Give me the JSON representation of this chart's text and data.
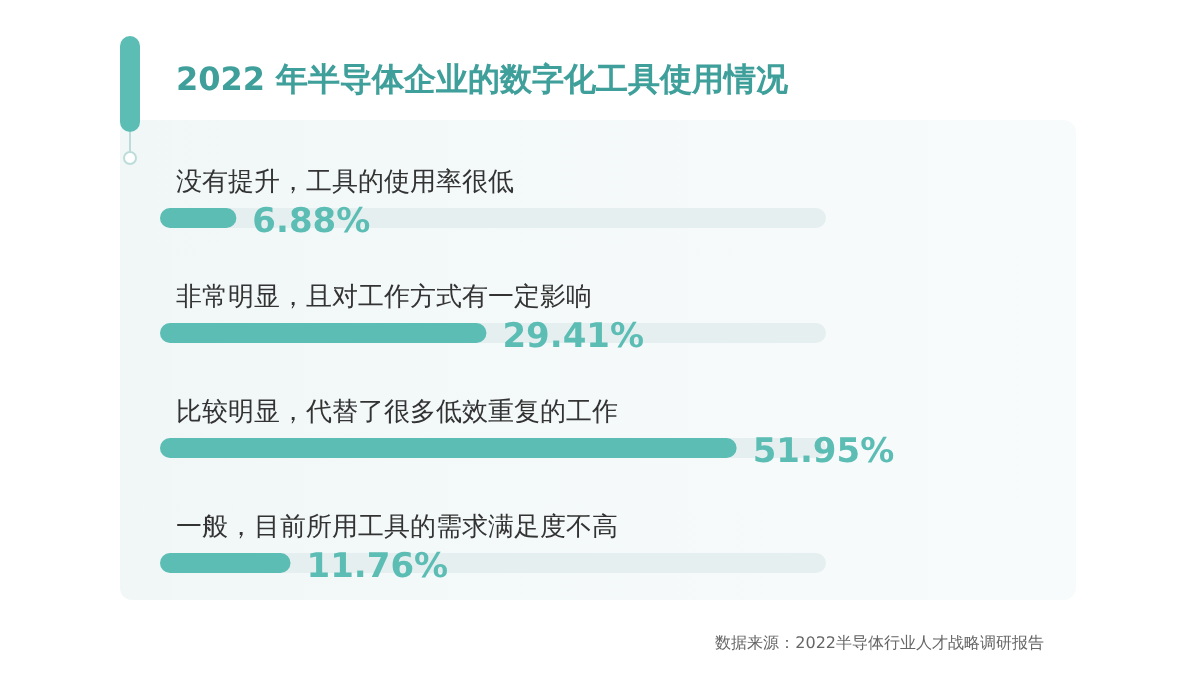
{
  "chart_data": {
    "type": "bar",
    "orientation": "horizontal",
    "title": "2022 年半导体企业的数字化工具使用情况",
    "categories": [
      "没有提升，工具的使用率很低",
      "非常明显，且对工作方式有一定影响",
      "比较明显，代替了很多低效重复的工作",
      "一般，目前所用工具的需求满足度不高"
    ],
    "values": [
      6.88,
      29.41,
      51.95,
      11.76
    ],
    "value_labels": [
      "6.88%",
      "29.41%",
      "51.95%",
      "11.76%"
    ],
    "color": "#5cbdb5",
    "legend": false,
    "grid": false,
    "annotations": [
      "数据来源：2022半导体行业人才战略调研报告"
    ]
  }
}
